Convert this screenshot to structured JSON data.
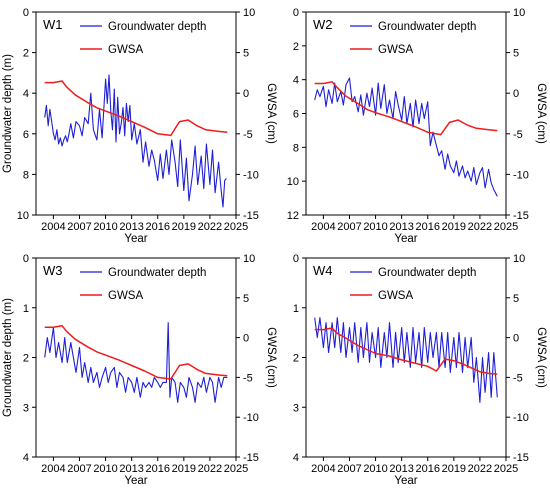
{
  "colors": {
    "groundwater": "#1f1fd6",
    "gwsa": "#ee1c1c"
  },
  "chart_data": [
    {
      "type": "line",
      "panel_label": "W1",
      "xlabel": "Year",
      "ylabel_left": "Groundwater depth (m)",
      "ylabel_right": "GWSA (cm)",
      "xlim": [
        2002,
        2025
      ],
      "xticks": [
        "2004",
        "2007",
        "2010",
        "2013",
        "2016",
        "2019",
        "2022",
        "2025"
      ],
      "ylim_left": [
        10,
        0
      ],
      "yticks_left": [
        "0",
        "2",
        "4",
        "6",
        "8",
        "10"
      ],
      "ylim_right": [
        -15,
        10
      ],
      "yticks_right": [
        "10",
        "5",
        "0",
        "-5",
        "-10",
        "-15"
      ],
      "legend": [
        "Groundwater depth",
        "GWSA"
      ],
      "series": [
        {
          "name": "Groundwater depth",
          "axis": "left",
          "x": [
            2003.0,
            2003.2,
            2003.4,
            2003.6,
            2003.8,
            2004.0,
            2004.2,
            2004.4,
            2004.6,
            2004.8,
            2005.0,
            2005.2,
            2005.4,
            2005.6,
            2005.8,
            2006.0,
            2006.3,
            2006.6,
            2007.0,
            2007.3,
            2007.6,
            2008.0,
            2008.3,
            2008.6,
            2009.0,
            2009.3,
            2009.6,
            2010.0,
            2010.2,
            2010.4,
            2010.6,
            2010.8,
            2011.0,
            2011.2,
            2011.4,
            2011.6,
            2011.8,
            2012.0,
            2012.2,
            2012.4,
            2012.6,
            2012.8,
            2013.0,
            2013.3,
            2013.6,
            2014.0,
            2014.3,
            2014.6,
            2015.0,
            2015.3,
            2015.6,
            2016.0,
            2016.3,
            2016.6,
            2017.0,
            2017.3,
            2017.6,
            2018.0,
            2018.3,
            2018.6,
            2019.0,
            2019.3,
            2019.6,
            2020.0,
            2020.3,
            2020.6,
            2021.0,
            2021.3,
            2021.6,
            2022.0,
            2022.3,
            2022.6,
            2023.0,
            2023.3,
            2023.5,
            2023.7,
            2023.9
          ],
          "values": [
            5.2,
            4.6,
            5.6,
            4.8,
            5.4,
            6.0,
            6.3,
            5.8,
            6.5,
            6.2,
            6.6,
            6.3,
            6.1,
            6.4,
            6.0,
            5.5,
            6.2,
            5.4,
            5.6,
            6.1,
            5.2,
            5.5,
            4.0,
            5.8,
            6.3,
            4.8,
            6.2,
            3.3,
            4.5,
            3.1,
            4.9,
            5.8,
            3.8,
            6.4,
            4.2,
            6.0,
            5.5,
            4.7,
            6.1,
            4.5,
            5.4,
            4.6,
            6.3,
            5.5,
            6.5,
            5.8,
            7.4,
            6.4,
            7.6,
            6.8,
            7.3,
            8.3,
            7.0,
            8.2,
            6.8,
            8.0,
            6.3,
            7.4,
            8.6,
            6.3,
            8.8,
            7.2,
            9.3,
            8.0,
            6.6,
            8.5,
            7.1,
            8.7,
            6.5,
            8.5,
            6.8,
            8.9,
            7.4,
            8.8,
            9.6,
            8.3,
            8.2
          ]
        },
        {
          "name": "GWSA",
          "axis": "right",
          "x": [
            2003.0,
            2004.0,
            2005.0,
            2005.5,
            2006.5,
            2008.0,
            2009.0,
            2010.0,
            2011.5,
            2013.0,
            2014.5,
            2016.0,
            2017.5,
            2018.5,
            2019.5,
            2020.5,
            2021.5,
            2023.0,
            2024.0
          ],
          "values": [
            1.3,
            1.3,
            1.5,
            0.8,
            -0.2,
            -1.2,
            -1.8,
            -2.2,
            -2.8,
            -3.5,
            -4.2,
            -5.0,
            -5.2,
            -3.5,
            -3.3,
            -4.0,
            -4.5,
            -4.7,
            -4.8
          ]
        }
      ]
    },
    {
      "type": "line",
      "panel_label": "W2",
      "xlabel": "Year",
      "ylabel_left": "",
      "ylabel_right": "GWSA (cm)",
      "xlim": [
        2002,
        2025
      ],
      "xticks": [
        "2004",
        "2007",
        "2010",
        "2013",
        "2016",
        "2019",
        "2022",
        "2025"
      ],
      "ylim_left": [
        12,
        0
      ],
      "yticks_left": [
        "0",
        "2",
        "4",
        "6",
        "8",
        "10",
        "12"
      ],
      "ylim_right": [
        -15,
        10
      ],
      "yticks_right": [
        "10",
        "5",
        "0",
        "-5",
        "-10",
        "-15"
      ],
      "legend": [
        "Groundwater depth",
        "GWSA"
      ],
      "series": [
        {
          "name": "Groundwater depth",
          "axis": "left",
          "x": [
            2003.0,
            2003.3,
            2003.6,
            2004.0,
            2004.3,
            2004.6,
            2005.0,
            2005.3,
            2005.6,
            2006.0,
            2006.3,
            2006.6,
            2007.0,
            2007.3,
            2007.6,
            2008.0,
            2008.3,
            2008.6,
            2009.0,
            2009.3,
            2009.6,
            2010.0,
            2010.3,
            2010.6,
            2011.0,
            2011.3,
            2011.6,
            2012.0,
            2012.3,
            2012.6,
            2013.0,
            2013.3,
            2013.6,
            2014.0,
            2014.3,
            2014.6,
            2015.0,
            2015.3,
            2015.6,
            2016.0,
            2016.3,
            2016.6,
            2017.0,
            2017.3,
            2017.6,
            2018.0,
            2018.3,
            2018.6,
            2019.0,
            2019.3,
            2019.6,
            2020.0,
            2020.3,
            2020.6,
            2021.0,
            2021.3,
            2021.6,
            2022.0,
            2022.3,
            2022.6,
            2023.0,
            2023.3,
            2023.6,
            2024.0
          ],
          "values": [
            5.2,
            4.6,
            5.0,
            4.4,
            5.6,
            4.6,
            5.4,
            4.2,
            5.3,
            4.7,
            5.5,
            4.3,
            3.9,
            5.3,
            5.0,
            5.9,
            4.9,
            6.1,
            4.8,
            5.6,
            4.5,
            6.1,
            4.2,
            5.7,
            4.3,
            6.0,
            5.2,
            6.3,
            4.7,
            5.5,
            6.4,
            5.0,
            6.6,
            5.4,
            6.8,
            5.2,
            6.6,
            5.4,
            6.3,
            5.3,
            7.9,
            7.1,
            7.9,
            8.5,
            8.2,
            9.3,
            8.4,
            9.1,
            9.5,
            8.8,
            9.7,
            9.1,
            9.8,
            9.4,
            10.0,
            9.2,
            10.2,
            9.5,
            9.2,
            10.4,
            9.3,
            10.1,
            10.5,
            10.9
          ]
        },
        {
          "name": "GWSA",
          "axis": "right",
          "x": [
            2003.0,
            2004.0,
            2005.0,
            2005.5,
            2006.5,
            2008.0,
            2009.0,
            2010.0,
            2011.5,
            2013.0,
            2014.5,
            2016.0,
            2017.5,
            2018.5,
            2019.5,
            2020.5,
            2021.5,
            2023.0,
            2024.0
          ],
          "values": [
            1.2,
            1.2,
            1.4,
            0.8,
            -0.3,
            -1.3,
            -2.0,
            -2.4,
            -2.9,
            -3.5,
            -4.1,
            -4.8,
            -5.1,
            -3.6,
            -3.3,
            -3.9,
            -4.3,
            -4.5,
            -4.6
          ]
        }
      ]
    },
    {
      "type": "line",
      "panel_label": "W3",
      "xlabel": "Year",
      "ylabel_left": "Groundwater depth (m)",
      "ylabel_right": "GWSA (cm)",
      "xlim": [
        2002,
        2025
      ],
      "xticks": [
        "2004",
        "2007",
        "2010",
        "2013",
        "2016",
        "2019",
        "2022",
        "2025"
      ],
      "ylim_left": [
        4,
        0
      ],
      "yticks_left": [
        "0",
        "1",
        "2",
        "3",
        "4"
      ],
      "ylim_right": [
        -15,
        10
      ],
      "yticks_right": [
        "10",
        "5",
        "0",
        "-5",
        "-10",
        "-15"
      ],
      "legend": [
        "Groundwater depth",
        "GWSA"
      ],
      "series": [
        {
          "name": "Groundwater depth",
          "axis": "left",
          "x": [
            2003.0,
            2003.3,
            2003.6,
            2004.0,
            2004.3,
            2004.6,
            2005.0,
            2005.3,
            2005.6,
            2006.0,
            2006.3,
            2006.6,
            2007.0,
            2007.3,
            2007.6,
            2008.0,
            2008.3,
            2008.6,
            2009.0,
            2009.3,
            2009.6,
            2010.0,
            2010.3,
            2010.6,
            2011.0,
            2011.3,
            2011.6,
            2012.0,
            2012.3,
            2012.6,
            2013.0,
            2013.3,
            2013.6,
            2014.0,
            2014.3,
            2014.6,
            2015.0,
            2015.3,
            2015.6,
            2016.0,
            2016.3,
            2016.6,
            2017.0,
            2017.2,
            2017.4,
            2017.6,
            2018.0,
            2018.3,
            2018.6,
            2019.0,
            2019.3,
            2019.6,
            2020.0,
            2020.3,
            2020.6,
            2021.0,
            2021.3,
            2021.6,
            2022.0,
            2022.3,
            2022.6,
            2023.0,
            2023.3,
            2023.6,
            2024.0
          ],
          "values": [
            2.0,
            1.6,
            1.9,
            1.4,
            2.0,
            1.7,
            2.1,
            1.6,
            2.1,
            1.7,
            2.0,
            2.3,
            1.8,
            2.4,
            2.1,
            2.5,
            2.2,
            2.5,
            2.3,
            2.6,
            2.4,
            2.2,
            2.5,
            2.3,
            2.2,
            2.6,
            2.3,
            2.4,
            2.7,
            2.4,
            2.5,
            2.7,
            2.4,
            2.8,
            2.5,
            2.6,
            2.5,
            2.6,
            2.4,
            2.5,
            2.6,
            2.5,
            2.5,
            1.3,
            2.8,
            2.4,
            2.5,
            2.9,
            2.5,
            2.6,
            2.8,
            2.4,
            2.6,
            2.9,
            2.5,
            2.6,
            2.4,
            2.7,
            2.4,
            2.5,
            2.9,
            2.4,
            2.6,
            2.4,
            2.4
          ]
        },
        {
          "name": "GWSA",
          "axis": "right",
          "x": [
            2003.0,
            2004.0,
            2005.0,
            2005.5,
            2006.5,
            2008.0,
            2009.0,
            2010.0,
            2011.5,
            2013.0,
            2014.5,
            2016.0,
            2017.5,
            2018.5,
            2019.5,
            2020.5,
            2021.5,
            2023.0,
            2024.0
          ],
          "values": [
            1.3,
            1.3,
            1.5,
            0.8,
            -0.2,
            -1.2,
            -1.8,
            -2.2,
            -2.8,
            -3.5,
            -4.2,
            -5.0,
            -5.2,
            -3.5,
            -3.3,
            -4.0,
            -4.5,
            -4.7,
            -4.8
          ]
        }
      ]
    },
    {
      "type": "line",
      "panel_label": "W4",
      "xlabel": "Year",
      "ylabel_left": "",
      "ylabel_right": "GWSA (cm)",
      "xlim": [
        2002,
        2025
      ],
      "xticks": [
        "2004",
        "2007",
        "2010",
        "2013",
        "2016",
        "2019",
        "2022",
        "2025"
      ],
      "ylim_left": [
        4,
        0
      ],
      "yticks_left": [
        "0",
        "1",
        "2",
        "3",
        "4"
      ],
      "ylim_right": [
        -15,
        10
      ],
      "yticks_right": [
        "10",
        "5",
        "0",
        "-5",
        "-10",
        "-15"
      ],
      "legend": [
        "Groundwater depth",
        "GWSA"
      ],
      "series": [
        {
          "name": "Groundwater depth",
          "axis": "left",
          "x": [
            2003.0,
            2003.3,
            2003.6,
            2004.0,
            2004.3,
            2004.6,
            2005.0,
            2005.3,
            2005.6,
            2006.0,
            2006.3,
            2006.6,
            2007.0,
            2007.3,
            2007.6,
            2008.0,
            2008.3,
            2008.6,
            2009.0,
            2009.3,
            2009.6,
            2010.0,
            2010.3,
            2010.6,
            2011.0,
            2011.3,
            2011.6,
            2012.0,
            2012.3,
            2012.6,
            2013.0,
            2013.3,
            2013.6,
            2014.0,
            2014.3,
            2014.6,
            2015.0,
            2015.3,
            2015.6,
            2016.0,
            2016.3,
            2016.6,
            2017.0,
            2017.3,
            2017.6,
            2018.0,
            2018.3,
            2018.6,
            2019.0,
            2019.3,
            2019.6,
            2020.0,
            2020.3,
            2020.6,
            2021.0,
            2021.3,
            2021.6,
            2022.0,
            2022.3,
            2022.6,
            2023.0,
            2023.3,
            2023.6,
            2024.0
          ],
          "values": [
            1.2,
            1.6,
            1.2,
            1.8,
            1.3,
            1.9,
            1.3,
            1.8,
            1.2,
            1.9,
            1.3,
            2.0,
            1.4,
            1.9,
            1.3,
            2.1,
            1.4,
            2.0,
            1.3,
            2.1,
            1.5,
            2.0,
            1.4,
            2.2,
            1.5,
            2.0,
            1.3,
            2.2,
            1.5,
            2.1,
            1.4,
            2.1,
            1.5,
            2.2,
            1.4,
            2.1,
            1.5,
            2.2,
            1.4,
            2.1,
            1.5,
            2.0,
            1.5,
            2.2,
            1.5,
            2.2,
            1.5,
            2.3,
            1.6,
            2.2,
            1.5,
            2.3,
            1.6,
            2.2,
            1.6,
            2.5,
            2.0,
            2.9,
            2.0,
            2.7,
            1.9,
            2.8,
            1.9,
            2.8
          ]
        },
        {
          "name": "GWSA",
          "axis": "right",
          "x": [
            2003.0,
            2004.0,
            2005.0,
            2005.5,
            2006.5,
            2008.0,
            2009.0,
            2010.0,
            2011.5,
            2013.0,
            2014.5,
            2016.0,
            2017.0,
            2018.0,
            2019.0,
            2020.0,
            2021.0,
            2022.0,
            2023.0,
            2024.0
          ],
          "values": [
            1.0,
            1.0,
            1.2,
            0.6,
            0.0,
            -1.0,
            -1.5,
            -2.0,
            -2.3,
            -2.8,
            -3.2,
            -3.6,
            -4.2,
            -2.7,
            -2.9,
            -3.3,
            -3.8,
            -4.3,
            -4.5,
            -4.6
          ]
        }
      ]
    }
  ]
}
